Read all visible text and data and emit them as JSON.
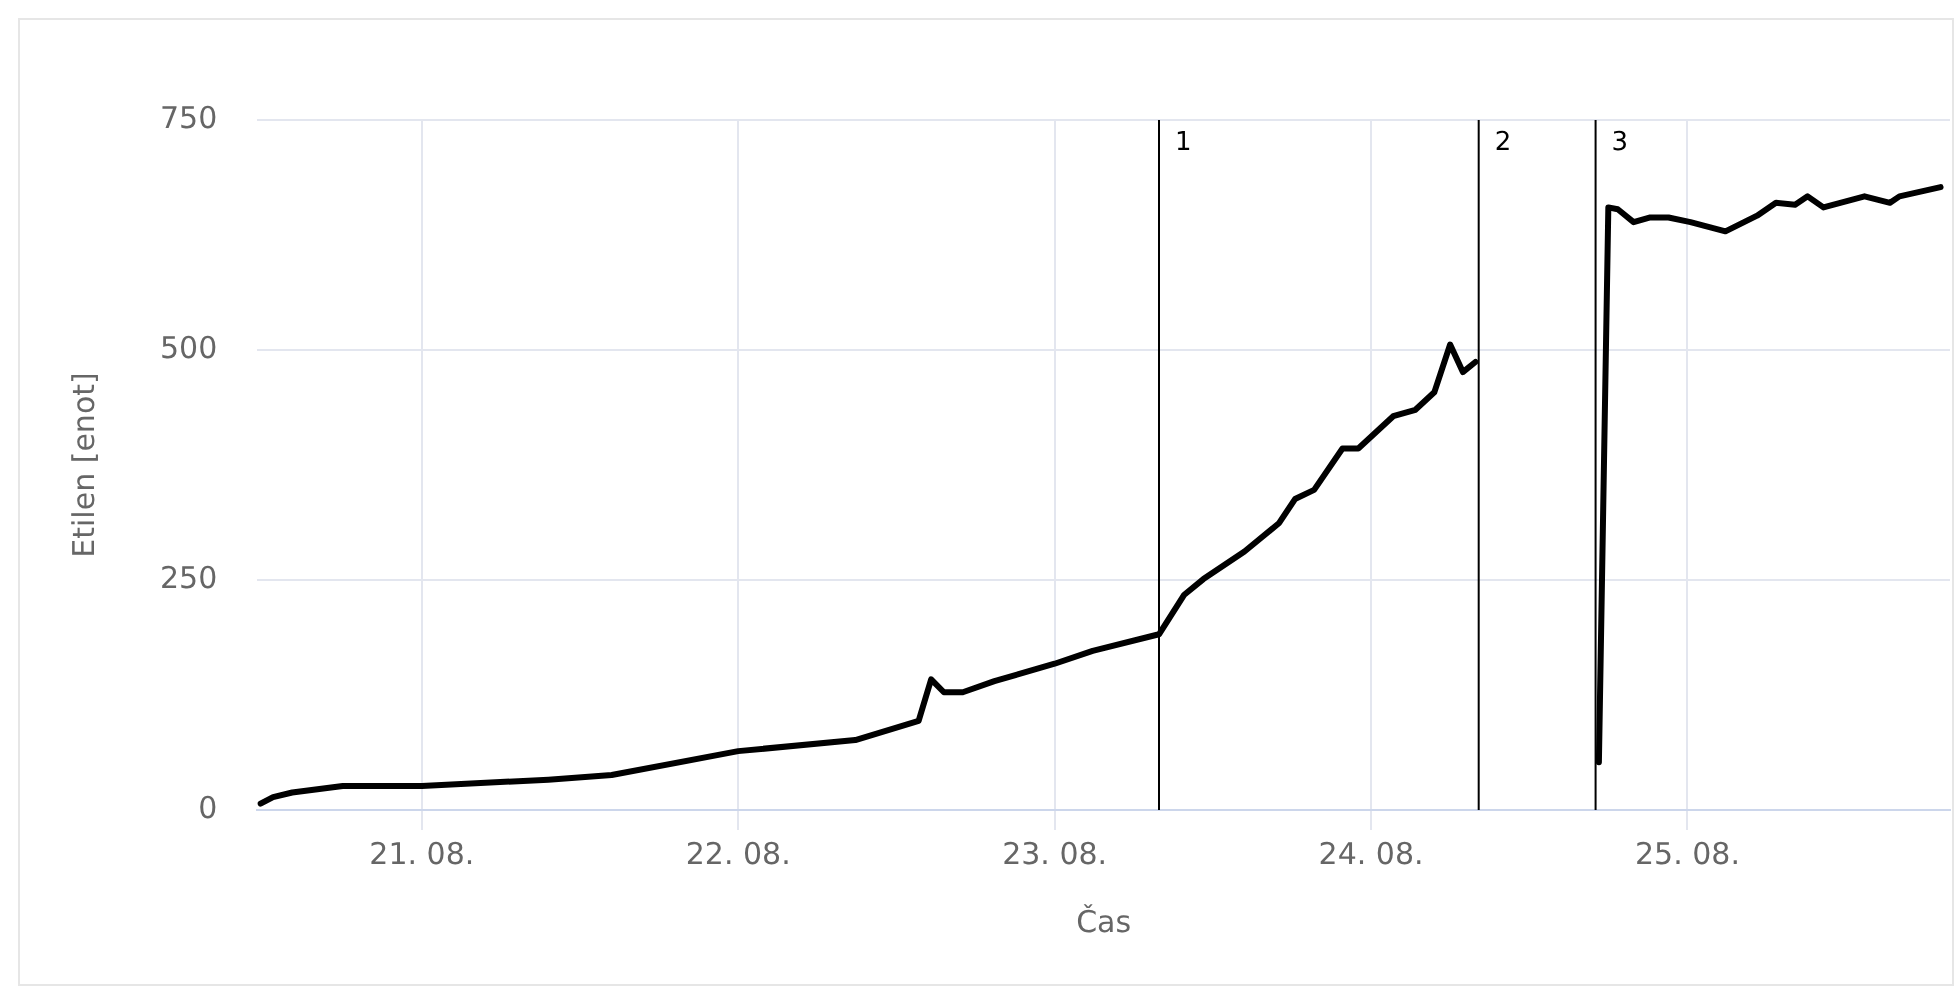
{
  "chart_data": {
    "type": "line",
    "xlabel": "Čas",
    "ylabel": "Etilen [enot]",
    "xlim": [
      "--08-20T11:31",
      "--08-25T19:55"
    ],
    "xticks": [
      {
        "value": "--08-21",
        "label": "21. 08."
      },
      {
        "value": "--08-22",
        "label": "22. 08."
      },
      {
        "value": "--08-23",
        "label": "23. 08."
      },
      {
        "value": "--08-24",
        "label": "24. 08."
      },
      {
        "value": "--08-25",
        "label": "25. 08."
      }
    ],
    "ylim": [
      0,
      750
    ],
    "yticks": [
      0,
      250,
      500,
      750
    ],
    "grid": true,
    "legend": false,
    "marker": "none",
    "line_style": "solid",
    "series": [
      {
        "color": "#000000",
        "x": [
          "--08-20T11:46",
          "--08-20T12:43",
          "--08-20T14:10",
          "--08-20T18:00",
          "--08-21T00:00",
          "--08-21T09:36",
          "--08-21T14:24",
          "--08-22T00:00",
          "--08-22T08:53",
          "--08-22T13:41",
          "--08-22T14:38",
          "--08-22T15:36",
          "--08-22T17:02",
          "--08-22T19:26",
          "--08-23T00:00",
          "--08-23T02:53",
          "--08-23T07:55",
          "--08-23T09:50",
          "--08-23T11:17",
          "--08-23T14:24",
          "--08-23T17:02",
          "--08-23T18:14",
          "--08-23T19:41",
          "--08-23T21:50",
          "--08-23T23:02",
          "--08-24T01:41",
          "--08-24T03:22",
          "--08-24T04:48",
          "--08-24T06:00",
          "--08-24T06:58",
          "--08-24T07:55",
          "--08-24T12:00",
          "--08-24T17:17",
          "--08-24T18:00",
          "--08-24T18:43",
          "--08-24T19:55",
          "--08-24T21:07",
          "--08-24T22:34",
          "--08-25T00:14",
          "--08-25T02:53",
          "--08-25T05:17",
          "--08-25T06:43",
          "--08-25T08:10",
          "--08-25T09:07",
          "--08-25T10:19",
          "--08-25T13:26",
          "--08-25T15:22",
          "--08-25T16:05",
          "--08-25T19:12"
        ],
        "values": [
          7,
          14,
          19,
          26,
          26,
          33,
          38,
          64,
          76,
          97,
          142,
          128,
          128,
          140,
          159,
          173,
          191,
          234,
          251,
          281,
          312,
          338,
          348,
          393,
          393,
          428,
          435,
          454,
          506,
          476,
          487,
          null,
          52,
          655,
          653,
          639,
          644,
          644,
          639,
          629,
          646,
          660,
          658,
          667,
          655,
          667,
          660,
          667,
          677
        ]
      }
    ],
    "ref_lines": [
      {
        "axis": "x",
        "value": "--08-23T07:55",
        "label": "1",
        "color": "#000000"
      },
      {
        "axis": "x",
        "value": "--08-24T08:10",
        "label": "2",
        "color": "#000000"
      },
      {
        "axis": "x",
        "value": "--08-24T17:02",
        "label": "3",
        "color": "#000000"
      }
    ]
  }
}
